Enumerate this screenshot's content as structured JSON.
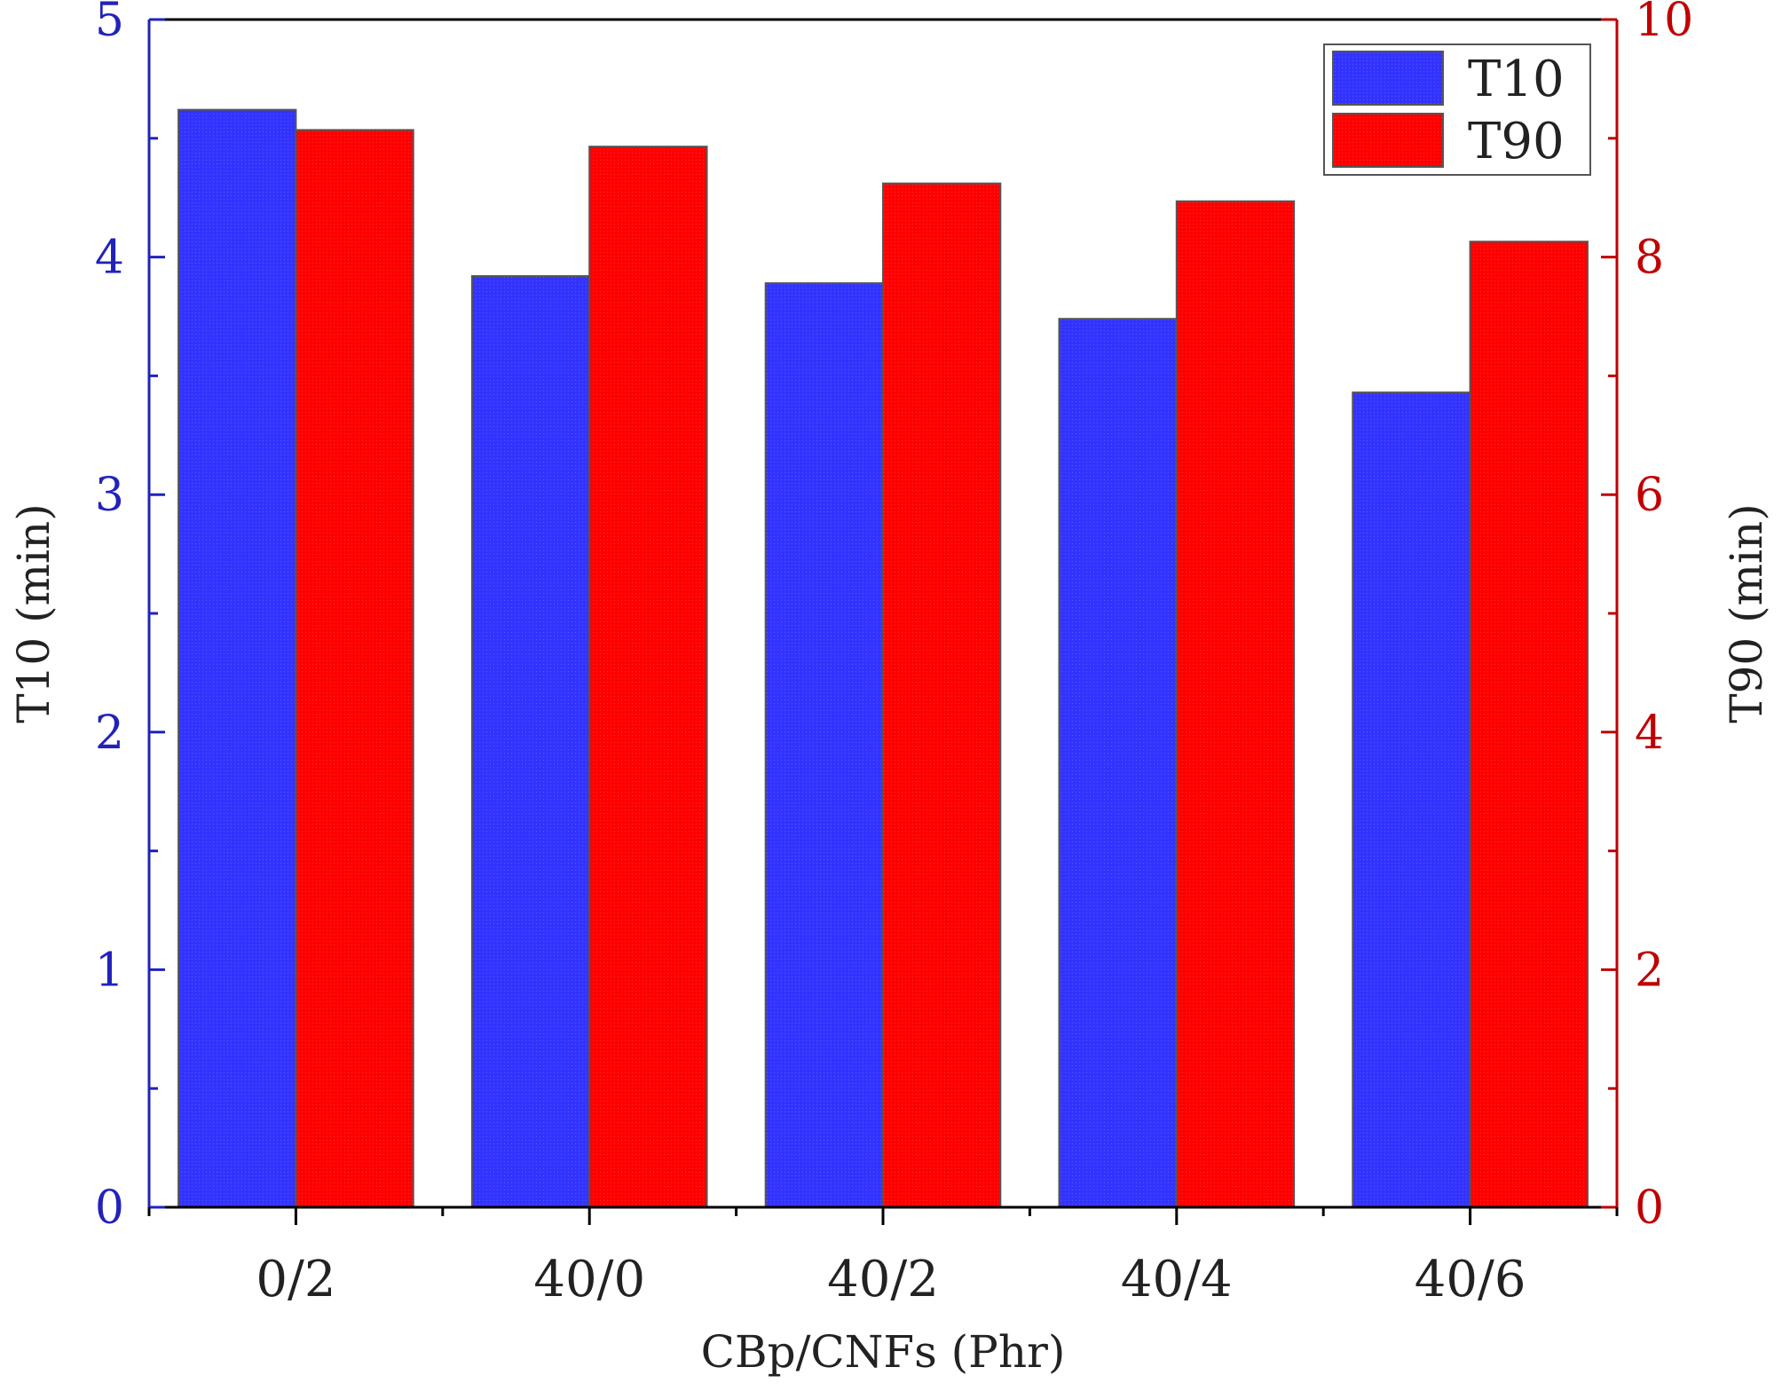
{
  "chart_data": {
    "type": "bar",
    "xlabel": "CBp/CNFs (Phr)",
    "categories": [
      "0/2",
      "40/0",
      "40/2",
      "40/4",
      "40/6"
    ],
    "series": [
      {
        "name": "T10",
        "axis": "left",
        "color": "#3333ff",
        "values": [
          4.62,
          3.92,
          3.89,
          3.74,
          3.43
        ]
      },
      {
        "name": "T90",
        "axis": "right",
        "color": "#ff0000",
        "values": [
          9.07,
          8.93,
          8.62,
          8.47,
          8.13
        ]
      }
    ],
    "y_left": {
      "label": "T10 (min)",
      "ylim": [
        0,
        5
      ],
      "ticks": [
        0,
        1,
        2,
        3,
        4,
        5
      ],
      "color": "#2222bb"
    },
    "y_right": {
      "label": "T90 (min)",
      "ylim": [
        0,
        10
      ],
      "ticks": [
        0,
        2,
        4,
        6,
        8,
        10
      ],
      "color": "#c00000"
    },
    "grid": false,
    "legend": {
      "position": "top-right"
    }
  }
}
